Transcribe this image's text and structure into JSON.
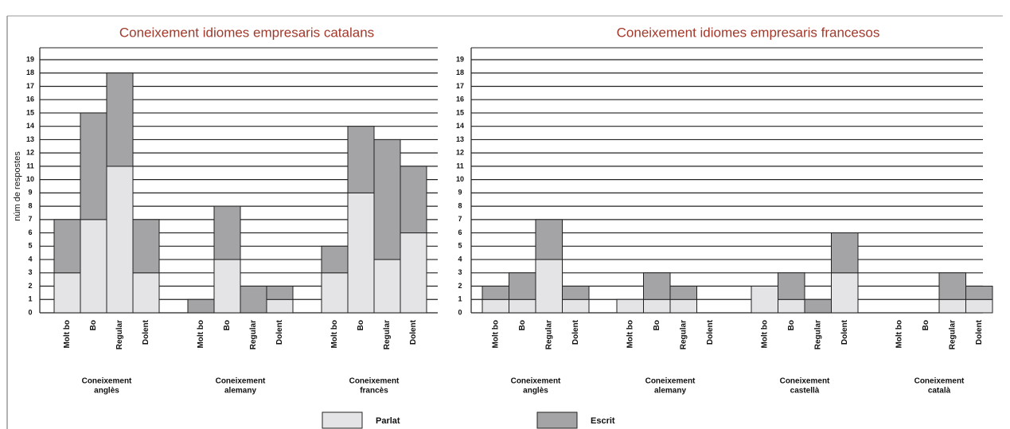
{
  "chart_data": [
    {
      "type": "stacked_bar",
      "title": "Coneixement idiomes empresaris catalans",
      "ylabel": "núm de respostes",
      "ylim": [
        0,
        19
      ],
      "yticks": [
        0,
        1,
        2,
        3,
        4,
        5,
        6,
        7,
        8,
        9,
        10,
        11,
        12,
        13,
        14,
        15,
        16,
        17,
        18,
        19
      ],
      "grid": true,
      "groups": [
        {
          "label": [
            "Coneixement",
            "anglès"
          ],
          "categories": [
            "Molt bo",
            "Bo",
            "Regular",
            "Dolent"
          ]
        },
        {
          "label": [
            "Coneixement",
            "alemany"
          ],
          "categories": [
            "Molt bo",
            "Bo",
            "Regular",
            "Dolent"
          ]
        },
        {
          "label": [
            "Coneixement",
            "francès"
          ],
          "categories": [
            "Molt bo",
            "Bo",
            "Regular",
            "Dolent"
          ]
        }
      ],
      "series": [
        {
          "name": "Parlat",
          "color": "#e4e4e6",
          "values": [
            [
              3,
              7,
              11,
              3
            ],
            [
              0,
              4,
              0,
              1
            ],
            [
              3,
              9,
              4,
              6
            ]
          ]
        },
        {
          "name": "Escrit",
          "color": "#a4a4a7",
          "values": [
            [
              4,
              8,
              7,
              4
            ],
            [
              1,
              4,
              2,
              1
            ],
            [
              2,
              5,
              9,
              5
            ]
          ]
        }
      ]
    },
    {
      "type": "stacked_bar",
      "title": "Coneixement idiomes empresaris francesos",
      "ylim": [
        0,
        19
      ],
      "yticks": [
        0,
        1,
        2,
        3,
        4,
        5,
        6,
        7,
        8,
        9,
        10,
        11,
        12,
        13,
        14,
        15,
        16,
        17,
        18,
        19
      ],
      "grid": true,
      "groups": [
        {
          "label": [
            "Coneixement",
            "anglès"
          ],
          "categories": [
            "Molt bo",
            "Bo",
            "Regular",
            "Dolent"
          ]
        },
        {
          "label": [
            "Coneixement",
            "alemany"
          ],
          "categories": [
            "Molt bo",
            "Bo",
            "Regular",
            "Dolent"
          ]
        },
        {
          "label": [
            "Coneixement",
            "castellà"
          ],
          "categories": [
            "Molt bo",
            "Bo",
            "Regular",
            "Dolent"
          ]
        },
        {
          "label": [
            "Coneixement",
            "català"
          ],
          "categories": [
            "Molt bo",
            "Bo",
            "Regular",
            "Dolent"
          ]
        }
      ],
      "series": [
        {
          "name": "Parlat",
          "color": "#e4e4e6",
          "values": [
            [
              1,
              1,
              4,
              1
            ],
            [
              1,
              1,
              1,
              0
            ],
            [
              2,
              1,
              0,
              3
            ],
            [
              0,
              0,
              1,
              1
            ]
          ]
        },
        {
          "name": "Escrit",
          "color": "#a4a4a7",
          "values": [
            [
              1,
              2,
              3,
              1
            ],
            [
              0,
              2,
              1,
              0
            ],
            [
              0,
              2,
              1,
              3
            ],
            [
              0,
              0,
              2,
              1
            ]
          ]
        }
      ]
    }
  ]
}
